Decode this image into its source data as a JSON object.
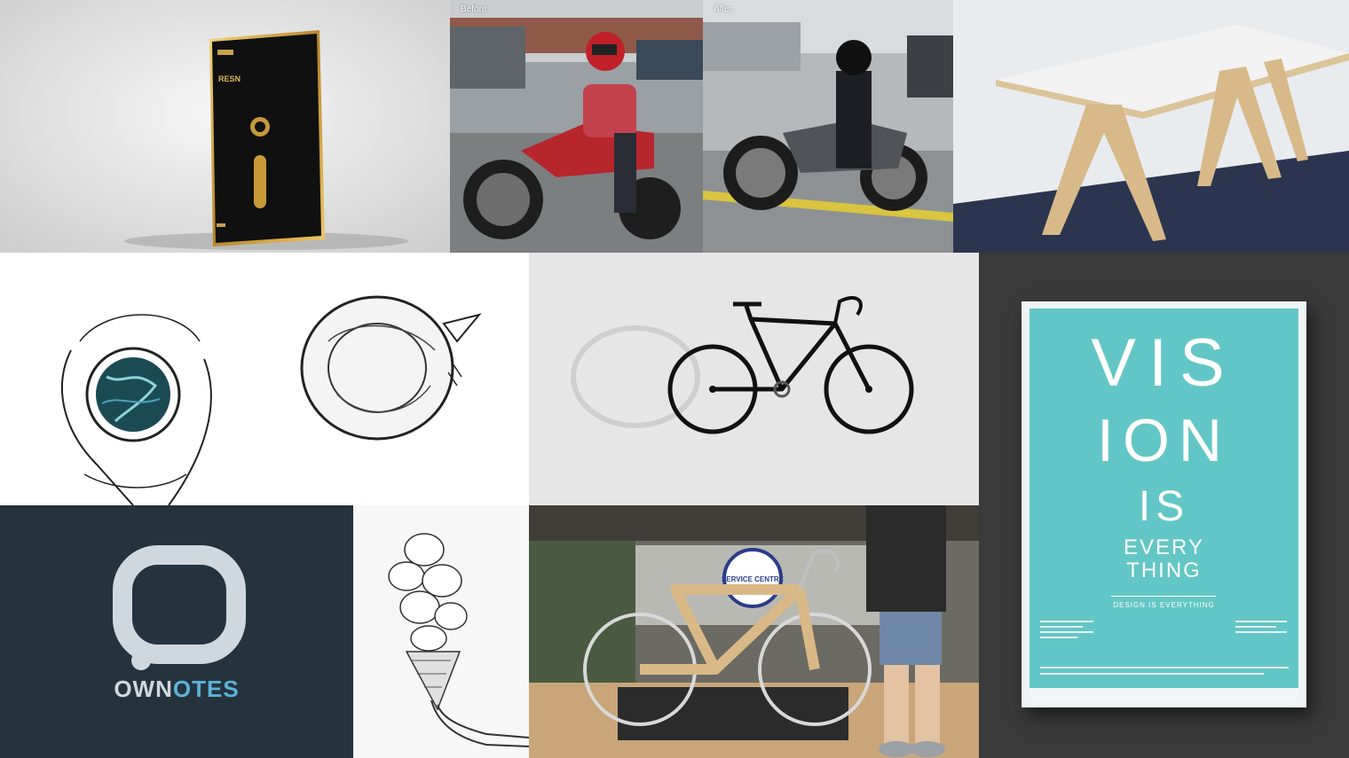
{
  "gallery": {
    "tiles": [
      {
        "name": "award-plaque",
        "description": "Gold trimmed black award plaque with RESN label"
      },
      {
        "name": "motorcycle-before",
        "label": "Before"
      },
      {
        "name": "motorcycle-after",
        "label": "After"
      },
      {
        "name": "plywood-table"
      },
      {
        "name": "hands-coffee-cup-sketch"
      },
      {
        "name": "curled-fox-sketch"
      },
      {
        "name": "black-fixie-bicycle"
      },
      {
        "name": "vision-poster"
      },
      {
        "name": "ownotes-logo"
      },
      {
        "name": "flower-ice-cream-cone-sketch"
      },
      {
        "name": "wooden-bicycle-shop"
      }
    ]
  },
  "plaque": {
    "brand": "RESN"
  },
  "motorcycle": {
    "before_label": "Before",
    "after_label": "After"
  },
  "logo": {
    "word_part1": "OWN",
    "word_part2": "OTES"
  },
  "shop_sign": {
    "text": "SERVICE CENTRE"
  },
  "poster": {
    "line1": "VIS",
    "line2": "ION",
    "line3": "IS",
    "line4": "EVERY",
    "line5": "THING",
    "tagline": "DESIGN IS EVERYTHING"
  },
  "colors": {
    "poster_teal": "#63c6c6",
    "logo_bg": "#25333e",
    "logo_accent": "#5cb3d6",
    "dark_bg": "#3a3a3a"
  }
}
